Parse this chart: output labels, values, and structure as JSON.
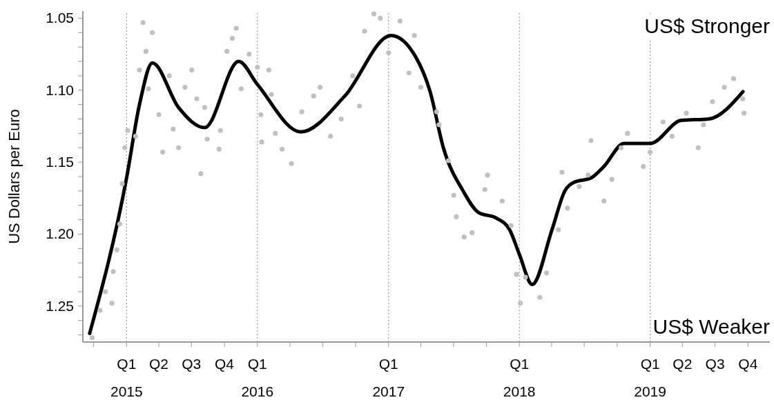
{
  "chart_data": {
    "type": "scatter",
    "ylabel": "US Dollars per Euro",
    "annotations": [
      "US$ Stronger",
      "US$ Weaker"
    ],
    "xlim": [
      "2014-09",
      "2019-12"
    ],
    "xticks": [
      {
        "value": "2014-10",
        "label": null
      },
      {
        "value": "2015-01",
        "label": "Q1 2015"
      },
      {
        "value": "2015-04",
        "label": "Q2"
      },
      {
        "value": "2015-07",
        "label": "Q3"
      },
      {
        "value": "2015-10",
        "label": "Q4"
      },
      {
        "value": "2016-01",
        "label": "Q1 2016"
      },
      {
        "value": "2016-04",
        "label": null
      },
      {
        "value": "2016-07",
        "label": null
      },
      {
        "value": "2016-10",
        "label": null
      },
      {
        "value": "2017-01",
        "label": "Q1 2017"
      },
      {
        "value": "2017-04",
        "label": null
      },
      {
        "value": "2017-07",
        "label": null
      },
      {
        "value": "2017-10",
        "label": null
      },
      {
        "value": "2018-01",
        "label": "Q1 2018"
      },
      {
        "value": "2018-04",
        "label": null
      },
      {
        "value": "2018-07",
        "label": null
      },
      {
        "value": "2018-10",
        "label": null
      },
      {
        "value": "2019-01",
        "label": "Q1 2019"
      },
      {
        "value": "2019-04",
        "label": "Q2"
      },
      {
        "value": "2019-07",
        "label": "Q3"
      },
      {
        "value": "2019-10",
        "label": "Q4"
      }
    ],
    "ylim": [
      1.275,
      1.045
    ],
    "yticks": [
      {
        "value": 1.05,
        "label": "1.05"
      },
      {
        "value": 1.06,
        "label": null
      },
      {
        "value": 1.07,
        "label": null
      },
      {
        "value": 1.08,
        "label": null
      },
      {
        "value": 1.09,
        "label": null
      },
      {
        "value": 1.1,
        "label": "1.10"
      },
      {
        "value": 1.11,
        "label": null
      },
      {
        "value": 1.12,
        "label": null
      },
      {
        "value": 1.13,
        "label": null
      },
      {
        "value": 1.14,
        "label": null
      },
      {
        "value": 1.15,
        "label": "1.15"
      },
      {
        "value": 1.16,
        "label": null
      },
      {
        "value": 1.17,
        "label": null
      },
      {
        "value": 1.18,
        "label": null
      },
      {
        "value": 1.19,
        "label": null
      },
      {
        "value": 1.2,
        "label": "1.20"
      },
      {
        "value": 1.21,
        "label": null
      },
      {
        "value": 1.22,
        "label": null
      },
      {
        "value": 1.23,
        "label": null
      },
      {
        "value": 1.24,
        "label": null
      },
      {
        "value": 1.25,
        "label": "1.25"
      },
      {
        "value": 1.26,
        "label": null
      },
      {
        "value": 1.27,
        "label": null
      }
    ],
    "ref_lines": [
      {
        "axis": "x",
        "value": "2015-01",
        "color": "#999999",
        "line_style": "dotted"
      },
      {
        "axis": "x",
        "value": "2016-01",
        "color": "#999999",
        "line_style": "dotted"
      },
      {
        "axis": "x",
        "value": "2017-01",
        "color": "#999999",
        "line_style": "dotted"
      },
      {
        "axis": "x",
        "value": "2018-01",
        "color": "#999999",
        "line_style": "dotted"
      },
      {
        "axis": "x",
        "value": "2019-01",
        "color": "#999999",
        "line_style": "dotted"
      }
    ],
    "series": [
      {
        "color": "#c0c0c0",
        "marker": "circle",
        "x": [
          "2014-09-27",
          "2014-10-19",
          "2014-11-03",
          "2014-11-21",
          "2014-11-25",
          "2014-12-05",
          "2014-12-13",
          "2014-12-20",
          "2014-12-27",
          "2015-01-04",
          "2015-01-26",
          "2015-02-06",
          "2015-02-16",
          "2015-02-24",
          "2015-03-03",
          "2015-03-14",
          "2015-04-01",
          "2015-04-12",
          "2015-04-30",
          "2015-05-11",
          "2015-05-26",
          "2015-06-13",
          "2015-07-02",
          "2015-07-16",
          "2015-07-27",
          "2015-08-07",
          "2015-08-14",
          "2015-09-16",
          "2015-09-20",
          "2015-10-08",
          "2015-10-23",
          "2015-11-03",
          "2015-11-17",
          "2015-12-09",
          "2016-01-01",
          "2016-01-11",
          "2016-01-13",
          "2016-02-02",
          "2016-02-09",
          "2016-02-20",
          "2016-03-10",
          "2016-04-05",
          "2016-05-04",
          "2016-06-06",
          "2016-06-24",
          "2016-07-23",
          "2016-08-22",
          "2016-09-23",
          "2016-10-12",
          "2016-10-26",
          "2016-11-21",
          "2016-12-09",
          "2017-01-01",
          "2017-02-02",
          "2017-02-27",
          "2017-03-14",
          "2017-04-01",
          "2017-05-15",
          "2017-05-22",
          "2017-06-17",
          "2017-07-02",
          "2017-07-09",
          "2017-07-31",
          "2017-08-22",
          "2017-09-27",
          "2017-10-04",
          "2017-11-14",
          "2017-12-09",
          "2017-12-24",
          "2018-01-04",
          "2018-01-18",
          "2018-02-27",
          "2018-03-18",
          "2018-04-20",
          "2018-04-30",
          "2018-05-15",
          "2018-06-17",
          "2018-07-12",
          "2018-07-20",
          "2018-08-25",
          "2018-09-16",
          "2018-10-12",
          "2018-10-30",
          "2018-12-13",
          "2019-01-01",
          "2019-02-06",
          "2019-03-03",
          "2019-04-12",
          "2019-05-15",
          "2019-05-30",
          "2019-06-24",
          "2019-07-27",
          "2019-08-22",
          "2019-09-16",
          "2019-09-20"
        ],
        "values": [
          1.272,
          1.253,
          1.24,
          1.248,
          1.226,
          1.211,
          1.193,
          1.165,
          1.14,
          1.128,
          1.132,
          1.086,
          1.053,
          1.073,
          1.099,
          1.06,
          1.117,
          1.143,
          1.09,
          1.127,
          1.14,
          1.098,
          1.086,
          1.106,
          1.158,
          1.112,
          1.134,
          1.141,
          1.128,
          1.073,
          1.064,
          1.057,
          1.099,
          1.075,
          1.084,
          1.117,
          1.136,
          1.086,
          1.103,
          1.13,
          1.141,
          1.151,
          1.115,
          1.104,
          1.098,
          1.132,
          1.12,
          1.09,
          1.111,
          1.059,
          1.047,
          1.05,
          1.074,
          1.052,
          1.088,
          1.062,
          1.098,
          1.115,
          1.124,
          1.149,
          1.173,
          1.188,
          1.202,
          1.199,
          1.169,
          1.159,
          1.177,
          1.194,
          1.228,
          1.248,
          1.23,
          1.244,
          1.227,
          1.197,
          1.157,
          1.182,
          1.167,
          1.159,
          1.135,
          1.177,
          1.162,
          1.14,
          1.13,
          1.153,
          1.143,
          1.122,
          1.132,
          1.116,
          1.14,
          1.124,
          1.108,
          1.098,
          1.092,
          1.106,
          1.116
        ]
      },
      {
        "type": "line",
        "color": "#000000",
        "marker": "none",
        "line_style": "solid",
        "x": [
          "2014-09-20",
          "2015-01-01",
          "2015-02-06",
          "2015-03-14",
          "2015-05-26",
          "2015-08-07",
          "2015-11-10",
          "2016-01-01",
          "2016-05-01",
          "2016-09-01",
          "2017-01-08",
          "2017-03-18",
          "2017-04-27",
          "2017-06-03",
          "2017-07-28",
          "2017-09-09",
          "2017-10-30",
          "2017-12-05",
          "2018-01-01",
          "2018-02-06",
          "2018-04-02",
          "2018-05-08",
          "2018-06-03",
          "2018-07-20",
          "2018-08-25",
          "2018-10-20",
          "2019-01-01",
          "2019-03-29",
          "2019-06-14",
          "2019-09-17"
        ],
        "values": [
          1.269,
          1.161,
          1.11,
          1.081,
          1.112,
          1.126,
          1.08,
          1.096,
          1.129,
          1.104,
          1.062,
          1.077,
          1.101,
          1.14,
          1.17,
          1.185,
          1.189,
          1.197,
          1.214,
          1.235,
          1.197,
          1.17,
          1.164,
          1.161,
          1.153,
          1.137,
          1.137,
          1.121,
          1.12,
          1.101
        ]
      }
    ]
  }
}
